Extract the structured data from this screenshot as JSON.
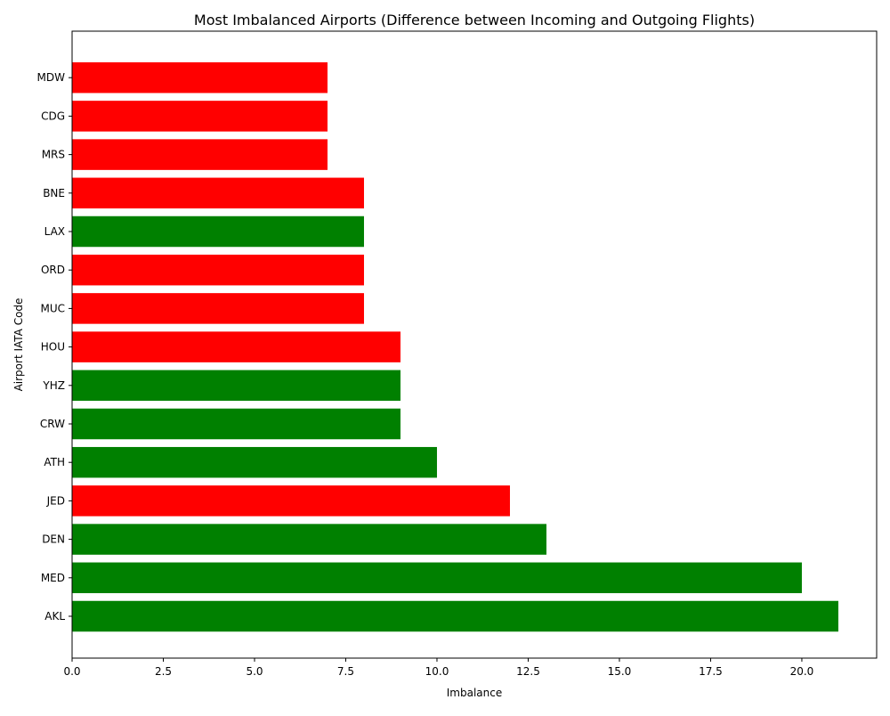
{
  "chart_data": {
    "type": "bar",
    "orientation": "horizontal",
    "title": "Most Imbalanced Airports (Difference between Incoming and Outgoing Flights)",
    "xlabel": "Imbalance",
    "ylabel": "Airport IATA Code",
    "xlim": [
      0,
      22.05
    ],
    "xticks": [
      0,
      2.5,
      5,
      7.5,
      10,
      12.5,
      15,
      17.5,
      20
    ],
    "xtick_labels": [
      "0.0",
      "2.5",
      "5.0",
      "7.5",
      "10.0",
      "12.5",
      "15.0",
      "17.5",
      "20.0"
    ],
    "grid": false,
    "categories": [
      "AKL",
      "MED",
      "DEN",
      "JED",
      "ATH",
      "CRW",
      "YHZ",
      "HOU",
      "MUC",
      "ORD",
      "LAX",
      "BNE",
      "MRS",
      "CDG",
      "MDW"
    ],
    "values": [
      21,
      20,
      13,
      12,
      10,
      9,
      9,
      9,
      8,
      8,
      8,
      8,
      7,
      7,
      7
    ],
    "colors": [
      "#008000",
      "#008000",
      "#008000",
      "#ff0000",
      "#008000",
      "#008000",
      "#008000",
      "#ff0000",
      "#ff0000",
      "#ff0000",
      "#008000",
      "#ff0000",
      "#ff0000",
      "#ff0000",
      "#ff0000"
    ]
  }
}
